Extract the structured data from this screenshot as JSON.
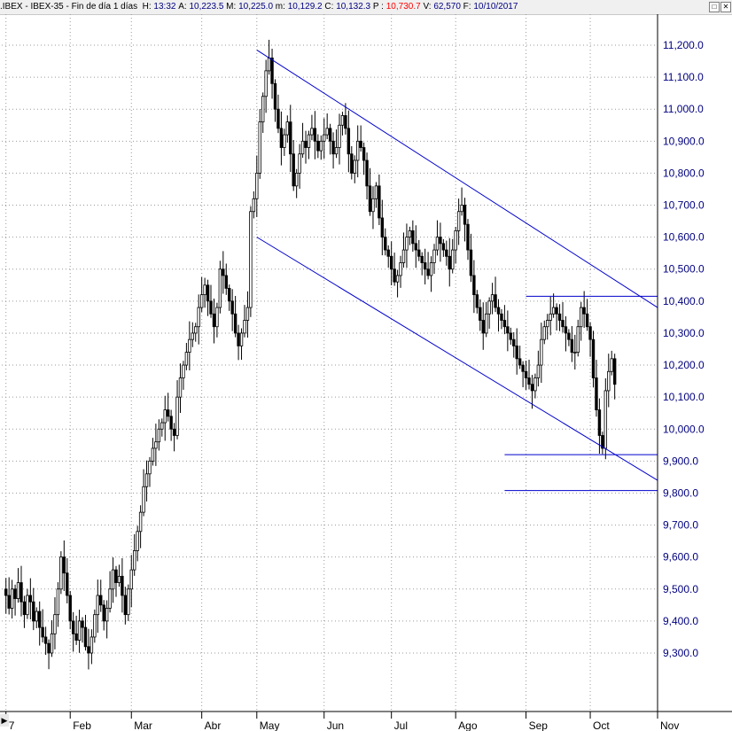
{
  "header": {
    "symbol": ".IBEX - IBEX-35 - Fin de día 1 días",
    "fields": [
      {
        "label": "H:",
        "value": "13:32",
        "color": "navy"
      },
      {
        "label": "A:",
        "value": "10,223.5",
        "color": "navy"
      },
      {
        "label": "M:",
        "value": "10,225.0",
        "color": "navy"
      },
      {
        "label": "m:",
        "value": "10,129.2",
        "color": "navy"
      },
      {
        "label": "C:",
        "value": "10,132.3",
        "color": "navy"
      },
      {
        "label": "P :",
        "value": "10,730.7",
        "color": "red"
      },
      {
        "label": "V:",
        "value": "62,570",
        "color": "navy"
      },
      {
        "label": "F:",
        "value": "10/10/2017",
        "color": "navy"
      }
    ],
    "window_buttons": [
      "□",
      "✕"
    ]
  },
  "colors": {
    "axis_text": "#000080",
    "line": "#0000cc",
    "candle": "#000000",
    "grid": "#9a9a9a"
  },
  "chart_data": {
    "type": "candlestick",
    "ylim": [
      9220,
      11300
    ],
    "y_ticks": [
      {
        "v": 9300,
        "label": "9,300.0"
      },
      {
        "v": 9400,
        "label": "9,400.0"
      },
      {
        "v": 9500,
        "label": "9,500.0"
      },
      {
        "v": 9600,
        "label": "9,600.0"
      },
      {
        "v": 9700,
        "label": "9,700.0"
      },
      {
        "v": 9800,
        "label": "9,800.0"
      },
      {
        "v": 9900,
        "label": "9,900.0"
      },
      {
        "v": 10000,
        "label": "10,000.0"
      },
      {
        "v": 10100,
        "label": "10,100.0"
      },
      {
        "v": 10200,
        "label": "10,200.0"
      },
      {
        "v": 10300,
        "label": "10,300.0"
      },
      {
        "v": 10400,
        "label": "10,400.0"
      },
      {
        "v": 10500,
        "label": "10,500.0"
      },
      {
        "v": 10600,
        "label": "10,600.0"
      },
      {
        "v": 10700,
        "label": "10,700.0"
      },
      {
        "v": 10800,
        "label": "10,800.0"
      },
      {
        "v": 10900,
        "label": "10,900.0"
      },
      {
        "v": 11000,
        "label": "11,000.0"
      },
      {
        "v": 11100,
        "label": "11,100.0"
      },
      {
        "v": 11200,
        "label": "11,200.0"
      }
    ],
    "x_ticks": [
      {
        "i": 0,
        "label": "7"
      },
      {
        "i": 21,
        "label": "Feb"
      },
      {
        "i": 41,
        "label": "Mar"
      },
      {
        "i": 64,
        "label": "Abr"
      },
      {
        "i": 82,
        "label": "May"
      },
      {
        "i": 104,
        "label": "Jun"
      },
      {
        "i": 126,
        "label": "Jul"
      },
      {
        "i": 147,
        "label": "Ago"
      },
      {
        "i": 170,
        "label": "Sep"
      },
      {
        "i": 191,
        "label": "Oct"
      },
      {
        "i": 213,
        "label": "Nov"
      }
    ],
    "x_domain": [
      -0.5,
      213
    ],
    "closes": [
      9480,
      9440,
      9500,
      9470,
      9520,
      9460,
      9420,
      9480,
      9460,
      9400,
      9430,
      9380,
      9350,
      9330,
      9300,
      9360,
      9420,
      9500,
      9600,
      9550,
      9480,
      9400,
      9360,
      9340,
      9400,
      9380,
      9320,
      9300,
      9350,
      9420,
      9480,
      9450,
      9400,
      9440,
      9500,
      9560,
      9520,
      9540,
      9480,
      9420,
      9500,
      9560,
      9620,
      9680,
      9740,
      9820,
      9860,
      9900,
      9940,
      9960,
      10000,
      10020,
      10060,
      10040,
      10000,
      9980,
      10100,
      10160,
      10200,
      10240,
      10280,
      10300,
      10320,
      10380,
      10420,
      10450,
      10400,
      10360,
      10320,
      10380,
      10500,
      10480,
      10440,
      10400,
      10360,
      10300,
      10260,
      10300,
      10340,
      10380,
      10680,
      10720,
      10800,
      10960,
      11040,
      11120,
      11160,
      11080,
      11000,
      10940,
      10880,
      10920,
      10960,
      10860,
      10760,
      10800,
      10860,
      10900,
      10880,
      10920,
      10940,
      10900,
      10870,
      10900,
      10920,
      10940,
      10900,
      10860,
      10880,
      10950,
      10980,
      10940,
      10860,
      10800,
      10840,
      10900,
      10880,
      10840,
      10760,
      10680,
      10720,
      10760,
      10660,
      10600,
      10560,
      10540,
      10500,
      10460,
      10480,
      10520,
      10560,
      10600,
      10620,
      10580,
      10560,
      10540,
      10520,
      10500,
      10480,
      10520,
      10560,
      10600,
      10580,
      10560,
      10540,
      10500,
      10560,
      10620,
      10680,
      10700,
      10640,
      10560,
      10480,
      10420,
      10380,
      10340,
      10300,
      10360,
      10400,
      10420,
      10380,
      10360,
      10340,
      10320,
      10300,
      10280,
      10260,
      10220,
      10200,
      10180,
      10160,
      10140,
      10120,
      10160,
      10200,
      10280,
      10320,
      10340,
      10360,
      10380,
      10360,
      10340,
      10320,
      10300,
      10280,
      10240,
      10240,
      10320,
      10380,
      10360,
      10320,
      10280,
      10160,
      10060,
      9980,
      9940,
      10120,
      10180,
      10220,
      10140
    ],
    "lines": [
      {
        "name": "upper-channel",
        "from": [
          82,
          11185
        ],
        "to": [
          213,
          10380
        ]
      },
      {
        "name": "lower-channel",
        "from": [
          82,
          10600
        ],
        "to": [
          213,
          9840
        ]
      },
      {
        "name": "resistance",
        "from": [
          170,
          10415
        ],
        "to": [
          213,
          10415
        ]
      },
      {
        "name": "support-1",
        "from": [
          163,
          9920
        ],
        "to": [
          213,
          9920
        ]
      },
      {
        "name": "support-2",
        "from": [
          163,
          9808
        ],
        "to": [
          213,
          9808
        ]
      }
    ]
  }
}
